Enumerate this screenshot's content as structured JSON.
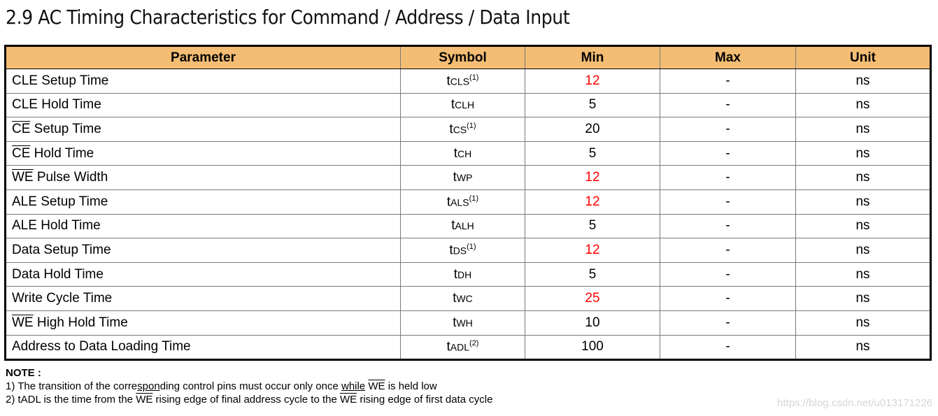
{
  "title": "2.9 AC Timing Characteristics for Command / Address / Data Input",
  "table": {
    "headers": [
      "Parameter",
      "Symbol",
      "Min",
      "Max",
      "Unit"
    ],
    "rows": [
      {
        "param_over": "",
        "param": "CLE Setup Time",
        "sym": "t",
        "sub": "CLS",
        "note": "(1)",
        "min": "12",
        "min_red": true,
        "max": "-",
        "unit": "ns"
      },
      {
        "param_over": "",
        "param": "CLE Hold Time",
        "sym": "t",
        "sub": "CLH",
        "note": "",
        "min": "5",
        "min_red": false,
        "max": "-",
        "unit": "ns"
      },
      {
        "param_over": "CE",
        "param": " Setup Time",
        "sym": "t",
        "sub": "CS",
        "note": "(1)",
        "min": "20",
        "min_red": false,
        "max": "-",
        "unit": "ns"
      },
      {
        "param_over": "CE",
        "param": " Hold Time",
        "sym": "t",
        "sub": "CH",
        "note": "",
        "min": "5",
        "min_red": false,
        "max": "-",
        "unit": "ns"
      },
      {
        "param_over": "WE",
        "param": " Pulse Width",
        "sym": "t",
        "sub": "WP",
        "note": "",
        "min": "12",
        "min_red": true,
        "max": "-",
        "unit": "ns"
      },
      {
        "param_over": "",
        "param": "ALE Setup Time",
        "sym": "t",
        "sub": "ALS",
        "note": "(1)",
        "min": "12",
        "min_red": true,
        "max": "-",
        "unit": "ns"
      },
      {
        "param_over": "",
        "param": "ALE Hold Time",
        "sym": "t",
        "sub": "ALH",
        "note": "",
        "min": "5",
        "min_red": false,
        "max": "-",
        "unit": "ns"
      },
      {
        "param_over": "",
        "param": "Data Setup Time",
        "sym": "t",
        "sub": "DS",
        "note": "(1)",
        "min": "12",
        "min_red": true,
        "max": "-",
        "unit": "ns"
      },
      {
        "param_over": "",
        "param": "Data Hold Time",
        "sym": "t",
        "sub": "DH",
        "note": "",
        "min": "5",
        "min_red": false,
        "max": "-",
        "unit": "ns"
      },
      {
        "param_over": "",
        "param": "Write Cycle Time",
        "sym": "t",
        "sub": "WC",
        "note": "",
        "min": "25",
        "min_red": true,
        "max": "-",
        "unit": "ns"
      },
      {
        "param_over": "WE",
        "param": " High Hold Time",
        "sym": "t",
        "sub": "WH",
        "note": "",
        "min": "10",
        "min_red": false,
        "max": "-",
        "unit": "ns"
      },
      {
        "param_over": "",
        "param": "Address to Data Loading Time",
        "sym": "t",
        "sub": "ADL",
        "note": "(2)",
        "min": "100",
        "min_red": false,
        "max": "-",
        "unit": "ns"
      }
    ]
  },
  "notes": {
    "heading": "NOTE :",
    "n1": {
      "a": "1) The transition of the corre",
      "b": "spon",
      "c": "ding control pins must occur only once ",
      "d": "while",
      "e": " ",
      "we": "WE",
      "f": " is held low"
    },
    "n2": {
      "a": "2) tADL is the time from the ",
      "we1": "WE",
      "b": " rising edge of final address cycle to the ",
      "we2": "WE",
      "c": " rising edge of first data cycle"
    }
  },
  "colors": {
    "header_bg": "#f4bd74",
    "highlight": "#ff0000"
  },
  "watermark": "https://blog.csdn.net/u013171226"
}
